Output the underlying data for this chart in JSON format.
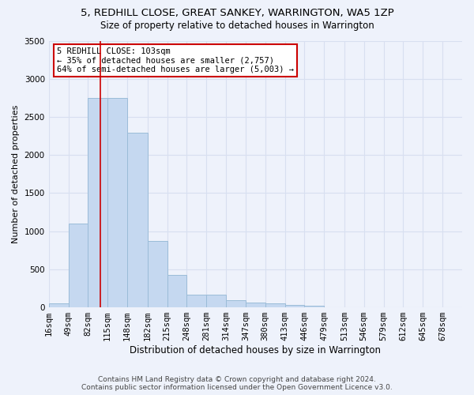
{
  "title": "5, REDHILL CLOSE, GREAT SANKEY, WARRINGTON, WA5 1ZP",
  "subtitle": "Size of property relative to detached houses in Warrington",
  "xlabel": "Distribution of detached houses by size in Warrington",
  "ylabel": "Number of detached properties",
  "footer_line1": "Contains HM Land Registry data © Crown copyright and database right 2024.",
  "footer_line2": "Contains public sector information licensed under the Open Government Licence v3.0.",
  "bin_labels": [
    "16sqm",
    "49sqm",
    "82sqm",
    "115sqm",
    "148sqm",
    "182sqm",
    "215sqm",
    "248sqm",
    "281sqm",
    "314sqm",
    "347sqm",
    "380sqm",
    "413sqm",
    "446sqm",
    "479sqm",
    "513sqm",
    "546sqm",
    "579sqm",
    "612sqm",
    "645sqm",
    "678sqm"
  ],
  "bin_edges": [
    16,
    49,
    82,
    115,
    148,
    182,
    215,
    248,
    281,
    314,
    347,
    380,
    413,
    446,
    479,
    513,
    546,
    579,
    612,
    645,
    678,
    711
  ],
  "bar_heights": [
    50,
    1100,
    2750,
    2750,
    2290,
    875,
    430,
    170,
    165,
    90,
    60,
    50,
    35,
    18,
    5,
    5,
    2,
    1,
    0,
    0,
    0
  ],
  "bar_color": "#c5d8f0",
  "bar_edgecolor": "#9bbcd8",
  "bar_linewidth": 0.7,
  "background_color": "#eef2fb",
  "grid_color": "#d8dff0",
  "property_size": 103,
  "vline_color": "#cc0000",
  "vline_linewidth": 1.2,
  "annotation_text": "5 REDHILL CLOSE: 103sqm\n← 35% of detached houses are smaller (2,757)\n64% of semi-detached houses are larger (5,003) →",
  "annotation_bbox_edgecolor": "#cc0000",
  "annotation_bbox_facecolor": "#ffffff",
  "ylim": [
    0,
    3500
  ],
  "yticks": [
    0,
    500,
    1000,
    1500,
    2000,
    2500,
    3000,
    3500
  ],
  "title_fontsize": 9.5,
  "subtitle_fontsize": 8.5,
  "annotation_fontsize": 7.5,
  "axis_fontsize": 7.5,
  "xlabel_fontsize": 8.5,
  "ylabel_fontsize": 8,
  "footer_fontsize": 6.5
}
